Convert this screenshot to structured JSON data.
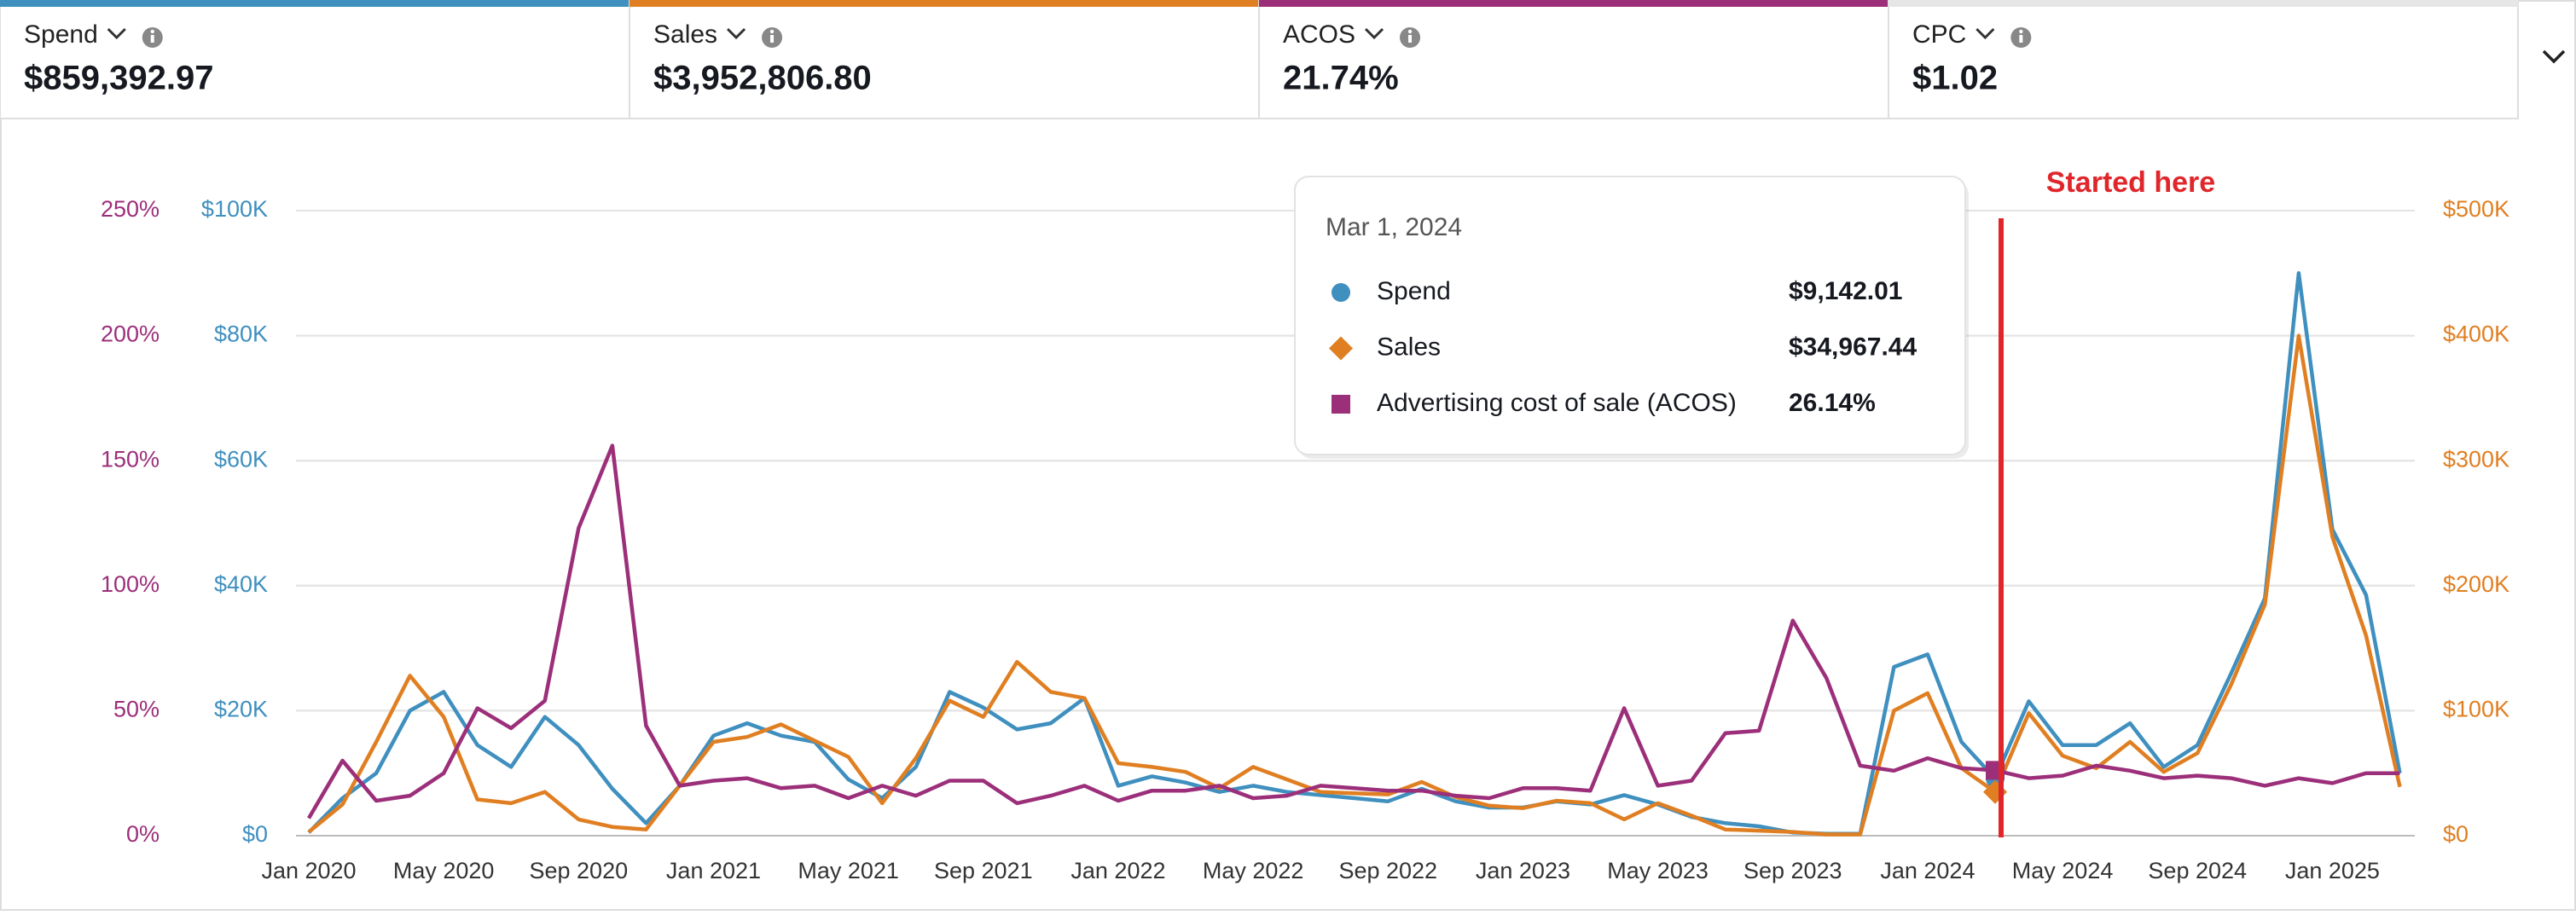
{
  "metrics": [
    {
      "label": "Spend",
      "value": "$859,392.97",
      "color": "#3f8fbf"
    },
    {
      "label": "Sales",
      "value": "$3,952,806.80",
      "color": "#e07f22"
    },
    {
      "label": "ACOS",
      "value": "21.74%",
      "color": "#9c2f7a"
    },
    {
      "label": "CPC",
      "value": "$1.02",
      "color": "#e6e6e6"
    }
  ],
  "chart_data": {
    "type": "line",
    "categories": [
      "Jan 2020",
      null,
      null,
      null,
      "May 2020",
      null,
      null,
      null,
      "Sep 2020",
      null,
      null,
      null,
      "Jan 2021",
      null,
      null,
      null,
      "May 2021",
      null,
      null,
      null,
      "Sep 2021",
      null,
      null,
      null,
      "Jan 2022",
      null,
      null,
      null,
      "May 2022",
      null,
      null,
      null,
      "Sep 2022",
      null,
      null,
      null,
      "Jan 2023",
      null,
      null,
      null,
      "May 2023",
      null,
      null,
      null,
      "Sep 2023",
      null,
      null,
      null,
      "Jan 2024",
      null,
      null,
      null,
      "May 2024",
      null,
      null,
      null,
      "Sep 2024",
      null,
      null,
      null,
      "Jan 2025",
      null,
      null
    ],
    "series": [
      {
        "name": "Spend",
        "color": "#3f8fbf",
        "axis": "y",
        "values": [
          500,
          6000,
          10000,
          20000,
          23000,
          14500,
          11000,
          19000,
          14500,
          7500,
          2000,
          8000,
          16000,
          18000,
          16000,
          15000,
          9000,
          6000,
          11000,
          23000,
          20500,
          17000,
          18000,
          22000,
          8000,
          9500,
          8500,
          7000,
          8000,
          7000,
          6500,
          6000,
          5500,
          7500,
          5500,
          4500,
          4500,
          5500,
          5000,
          6500,
          5000,
          3000,
          2000,
          1500,
          500,
          300,
          300,
          27000,
          29000,
          15000,
          9142.01,
          21500,
          14500,
          14500,
          18000,
          11000,
          14500,
          26000,
          38000,
          90000,
          49000,
          38500,
          10000
        ]
      },
      {
        "name": "Sales",
        "color": "#e07f22",
        "axis": "y2",
        "values": [
          3000,
          25000,
          75000,
          128000,
          95000,
          29000,
          26000,
          35000,
          13000,
          7000,
          5000,
          40000,
          75000,
          79000,
          89000,
          76000,
          63000,
          26000,
          62000,
          108000,
          95000,
          139000,
          115000,
          110000,
          58000,
          55000,
          51000,
          38000,
          55000,
          45000,
          35000,
          34000,
          33000,
          43000,
          31000,
          24000,
          22000,
          28000,
          26000,
          13000,
          26000,
          16000,
          5000,
          4000,
          3000,
          1000,
          1000,
          100000,
          114000,
          54000,
          34967.44,
          98000,
          64000,
          54000,
          75000,
          51000,
          66000,
          121000,
          185000,
          400000,
          239000,
          160000,
          39000
        ]
      },
      {
        "name": "Advertising cost of sale (ACOS)",
        "color": "#9c2f7a",
        "axis": "y3",
        "values": [
          7,
          30,
          14,
          16,
          25,
          51,
          43,
          54,
          123,
          156,
          44,
          20,
          22,
          23,
          19,
          20,
          15,
          20,
          16,
          22,
          22,
          13,
          16,
          20,
          14,
          18,
          18,
          20,
          15,
          16,
          20,
          19,
          18,
          18,
          16,
          15,
          19,
          19,
          18,
          51,
          20,
          22,
          41,
          42,
          86,
          63,
          28,
          26,
          31,
          27,
          26.14,
          23,
          24,
          28,
          26,
          23,
          24,
          23,
          20,
          23,
          21,
          25,
          25
        ]
      }
    ],
    "ylim": [
      0,
      100000
    ],
    "yticks": [
      {
        "value": 0,
        "label": "$0"
      },
      {
        "value": 20000,
        "label": "$20K"
      },
      {
        "value": 40000,
        "label": "$40K"
      },
      {
        "value": 60000,
        "label": "$60K"
      },
      {
        "value": 80000,
        "label": "$80K"
      },
      {
        "value": 100000,
        "label": "$100K"
      }
    ],
    "y2lim": [
      0,
      500000
    ],
    "y2ticks": [
      {
        "value": 0,
        "label": "$0"
      },
      {
        "value": 100000,
        "label": "$100K"
      },
      {
        "value": 200000,
        "label": "$200K"
      },
      {
        "value": 300000,
        "label": "$300K"
      },
      {
        "value": 400000,
        "label": "$400K"
      },
      {
        "value": 500000,
        "label": "$500K"
      }
    ],
    "y3lim": [
      0,
      250
    ],
    "y3ticks": [
      {
        "value": 0,
        "label": "0%"
      },
      {
        "value": 50,
        "label": "50%"
      },
      {
        "value": 100,
        "label": "100%"
      },
      {
        "value": 150,
        "label": "150%"
      },
      {
        "value": 200,
        "label": "200%"
      },
      {
        "value": 250,
        "label": "250%"
      }
    ],
    "grid": true,
    "annotation": "Started here",
    "tooltip": {
      "title": "Mar 1, 2024",
      "values": [
        "$9,142.01",
        "$34,967.44",
        "26.14%"
      ]
    }
  }
}
